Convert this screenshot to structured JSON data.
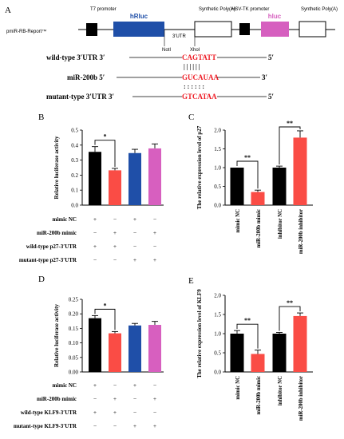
{
  "panelA": {
    "panel_label": "A",
    "vector": "pmiR-RB-Report™",
    "t7": "T7 promoter",
    "hrluc": "hRluc",
    "polyA1": "Synthetic Poly(A)",
    "hsvtk": "HSV-TK promoter",
    "hluc": "hluc",
    "polyA2": "Synthetic Poly(A)",
    "utr_label": "3′UTR",
    "noti": "NotI",
    "xhoi": "XhoI",
    "wt_label": "wild-type 3′UTR 3′",
    "wt_seq": "CAGTATT",
    "wt_end": "5′",
    "mir_label": "miR-200b 5′",
    "mir_seq": "GUCAUAA",
    "mir_end": "3′",
    "mut_label": "mutant-type 3′UTR 3′",
    "mut_seq": "GTCATAA",
    "mut_end": "5′",
    "colors": {
      "hrluc": "#1f4fa8",
      "hluc": "#d65fbf",
      "seq": "#ee1c25"
    }
  },
  "row_labels_B": [
    "mimic NC",
    "miR-200b mimic",
    "wild-type p27-3′UTR",
    "mutant-type p27-3′UTR"
  ],
  "row_signs_B": [
    [
      "+",
      "−",
      "+",
      "−"
    ],
    [
      "−",
      "+",
      "−",
      "+"
    ],
    [
      "+",
      "+",
      "−",
      "−"
    ],
    [
      "−",
      "−",
      "+",
      "+"
    ]
  ],
  "row_labels_D": [
    "mimic NC",
    "miR-200b mimic",
    "wild-type KLF9-3′UTR",
    "mutant-type KLF9-3′UTR"
  ],
  "row_signs_D": [
    [
      "+",
      "−",
      "+",
      "−"
    ],
    [
      "−",
      "+",
      "−",
      "+"
    ],
    [
      "+",
      "+",
      "−",
      "−"
    ],
    [
      "−",
      "−",
      "+",
      "+"
    ]
  ],
  "chart_data": [
    {
      "panel": "B",
      "type": "bar",
      "ylabel": "Relative luciferase activity",
      "ylim": [
        0,
        0.5
      ],
      "yticks": [
        "0.0",
        "0.1",
        "0.2",
        "0.3",
        "0.4",
        "0.5"
      ],
      "values": [
        0.355,
        0.232,
        0.347,
        0.378
      ],
      "errors": [
        0.035,
        0.013,
        0.025,
        0.03
      ],
      "colors": [
        "#000000",
        "#fa4c45",
        "#1f4fa8",
        "#d75fbf"
      ],
      "significance": [
        {
          "from": 0,
          "to": 1,
          "label": "*"
        }
      ]
    },
    {
      "panel": "C",
      "type": "bar",
      "ylabel": "The relative expression level of p27",
      "ylim": [
        0,
        2.0
      ],
      "yticks": [
        "0.0",
        "0.5",
        "1.0",
        "1.5",
        "2.0"
      ],
      "categories": [
        "mimic NC",
        "miR-200b mimic",
        "inhibitor NC",
        "miR-200b inhibitor"
      ],
      "values": [
        1.0,
        0.35,
        1.0,
        1.8
      ],
      "errors": [
        0.0,
        0.05,
        0.04,
        0.18
      ],
      "colors": [
        "#000000",
        "#fa4c45",
        "#000000",
        "#fa4c45"
      ],
      "significance": [
        {
          "from": 0,
          "to": 1,
          "label": "**"
        },
        {
          "from": 2,
          "to": 3,
          "label": "**"
        }
      ]
    },
    {
      "panel": "D",
      "type": "bar",
      "ylabel": "Relative luciferase activity",
      "ylim": [
        0,
        0.25
      ],
      "yticks": [
        "0.00",
        "0.05",
        "0.10",
        "0.15",
        "0.20",
        "0.25"
      ],
      "values": [
        0.185,
        0.133,
        0.16,
        0.162
      ],
      "errors": [
        0.009,
        0.006,
        0.007,
        0.012
      ],
      "colors": [
        "#000000",
        "#fa4c45",
        "#1f4fa8",
        "#d75fbf"
      ],
      "significance": [
        {
          "from": 0,
          "to": 1,
          "label": "*"
        }
      ]
    },
    {
      "panel": "E",
      "type": "bar",
      "ylabel": "The relative expression level of KLF9",
      "ylim": [
        0,
        2.0
      ],
      "yticks": [
        "0.0",
        "0.5",
        "1.0",
        "1.5",
        "2.0"
      ],
      "categories": [
        "mimic NC",
        "miR-200b mimic",
        "inhibitor NC",
        "miR-200b inhibitor"
      ],
      "values": [
        1.0,
        0.47,
        1.0,
        1.46
      ],
      "errors": [
        0.08,
        0.1,
        0.03,
        0.08
      ],
      "colors": [
        "#000000",
        "#fa4c45",
        "#000000",
        "#fa4c45"
      ],
      "significance": [
        {
          "from": 0,
          "to": 1,
          "label": "**"
        },
        {
          "from": 2,
          "to": 3,
          "label": "**"
        }
      ]
    }
  ]
}
